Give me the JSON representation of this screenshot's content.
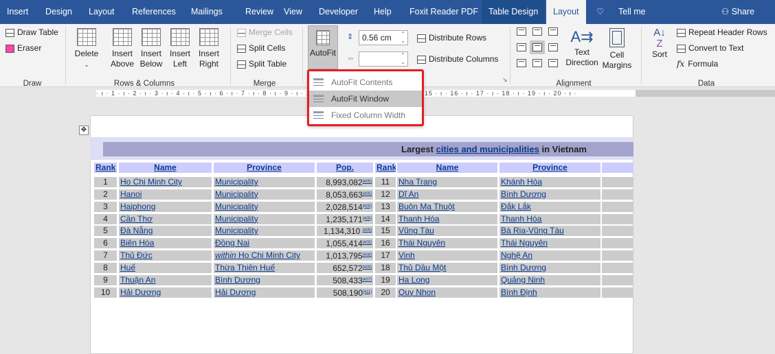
{
  "tabs": [
    "Insert",
    "Design",
    "Layout",
    "References",
    "Mailings",
    "Review",
    "View",
    "Developer",
    "Help",
    "Foxit Reader PDF",
    "Table Design",
    "Layout",
    "Tell me"
  ],
  "share": "Share",
  "ribbon": {
    "draw": {
      "draw_table": "Draw Table",
      "eraser": "Eraser",
      "label": "Draw"
    },
    "rows_cols": {
      "delete": "Delete",
      "insert_above": [
        "Insert",
        "Above"
      ],
      "insert_below": [
        "Insert",
        "Below"
      ],
      "insert_left": [
        "Insert",
        "Left"
      ],
      "insert_right": [
        "Insert",
        "Right"
      ],
      "label": "Rows & Columns"
    },
    "merge": {
      "merge_cells": "Merge Cells",
      "split_cells": "Split Cells",
      "split_table": "Split Table",
      "label": "Merge"
    },
    "autofit": "AutoFit",
    "cell_size": {
      "height": "0.56 cm",
      "width": "",
      "distribute_rows": "Distribute Rows",
      "distribute_columns": "Distribute Columns"
    },
    "alignment": {
      "text_direction": [
        "Text",
        "Direction"
      ],
      "cell_margins": [
        "Cell",
        "Margins"
      ],
      "label": "Alignment",
      "selected": "center-center"
    },
    "data": {
      "sort": "Sort",
      "repeat_header_rows": "Repeat Header Rows",
      "convert_to_text": "Convert to Text",
      "formula": "Formula",
      "label": "Data"
    }
  },
  "autofit_menu": [
    {
      "label": "AutoFit Contents",
      "highlighted": false
    },
    {
      "label": "AutoFit Window",
      "highlighted": true
    },
    {
      "label": "Fixed Column Width",
      "highlighted": false
    }
  ],
  "ruler": "· 13 · ı · 14 · ı · 15 · ı · 16 · ı · 17 · ı · 18 · ı · 19 · ı · 20 · ı ·",
  "ruler_left": "· ı · 1 · ı · 2 · ı · 3 · ı · 4 · ı · 5 · ı · 6 · ı · 7 · ı · 8 · ı · 9 · ı · 10 · ı · 11 · ı · 12",
  "table": {
    "title_pre": "Largest ",
    "title_link": "cities and municipalities",
    "title_post": " in Vietnam",
    "headers": [
      "Rank",
      "Name",
      "Province",
      "Pop.",
      "Rank",
      "Name",
      "Province"
    ],
    "left": [
      [
        "1",
        "Ho Chi Minh City",
        "Municipality",
        "8,993,082",
        "[405]"
      ],
      [
        "2",
        "Hanoi",
        "Municipality",
        "8,053,663",
        "[405]"
      ],
      [
        "3",
        "Haiphong",
        "Municipality",
        "2,028,514",
        "[405]"
      ],
      [
        "4",
        "Cần Thơ",
        "Municipality",
        "1,235,171",
        "[405]"
      ],
      [
        "5",
        "Đà Nẵng",
        "Municipality",
        "1,134,310 ",
        "[405]"
      ],
      [
        "6",
        "Biên Hòa",
        "Đồng Nai",
        "1,055,414",
        "[405]"
      ],
      [
        "7",
        "Thủ Đức",
        "within|Ho Chi Minh City",
        "1,013,795",
        "[408]"
      ],
      [
        "8",
        "Huế",
        "Thừa Thiên Huế",
        "652,572",
        "[405]"
      ],
      [
        "9",
        "Thuận An",
        "Bình Dương",
        "508,433",
        "[407]"
      ],
      [
        "10",
        "Hải Dương",
        "Hải Dương",
        "508,190",
        "[411]"
      ]
    ],
    "right": [
      [
        "11",
        "Nha Trang",
        "Khánh Hòa"
      ],
      [
        "12",
        "Dĩ An",
        "Bình Dương"
      ],
      [
        "13",
        "Buôn Ma Thuột",
        "Đắk Lắk"
      ],
      [
        "14",
        "Thanh Hóa",
        "Thanh Hóa"
      ],
      [
        "15",
        "Vũng Tàu",
        "Bà Rịa-Vũng Tàu"
      ],
      [
        "16",
        "Thái Nguyên",
        "Thái Nguyên"
      ],
      [
        "17",
        "Vinh",
        "Nghệ An"
      ],
      [
        "18",
        "Thủ Dầu Một",
        "Bình Dương"
      ],
      [
        "19",
        "Ha Long",
        "Quảng Ninh"
      ],
      [
        "20",
        "Quy Nhon",
        "Bình Định"
      ]
    ]
  },
  "colors": {
    "tab_bar": "#2b579a",
    "highlight_box": "#e51c23",
    "title_row": "#a3a3cc",
    "header_row": "#ccccff",
    "data_row": "#cccccc"
  }
}
